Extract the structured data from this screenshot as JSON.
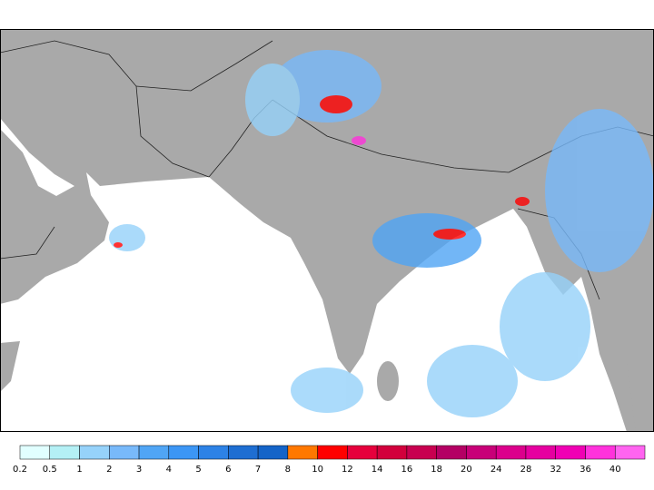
{
  "legend": {
    "levels": [
      0.2,
      0.5,
      1,
      2,
      3,
      4,
      5,
      6,
      7,
      8,
      10,
      12,
      14,
      16,
      18,
      20,
      24,
      28,
      32,
      36,
      40
    ],
    "colors": [
      "#e1ffff",
      "#b4f0f5",
      "#96d2fa",
      "#78b9fa",
      "#50a5f5",
      "#3c96f5",
      "#2d82e6",
      "#1e6ed2",
      "#1464c8",
      "#ff7800",
      "#ff0000",
      "#e6003c",
      "#d2003c",
      "#c80050",
      "#b40064",
      "#c80078",
      "#dc008c",
      "#e600a0",
      "#f000b4",
      "#ff32dc",
      "#ff64f0"
    ]
  }
}
